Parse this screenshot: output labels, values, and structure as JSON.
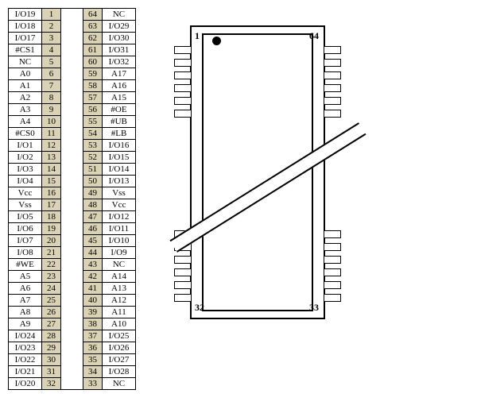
{
  "colors": {
    "shaded_cell_bg": "#dad2b4",
    "border": "#000000",
    "background": "#ffffff",
    "text": "#000000"
  },
  "typography": {
    "font_family": "Times New Roman, serif",
    "font_size_pt": 10,
    "label_weight": "bold"
  },
  "pin_table": {
    "type": "table",
    "columns": [
      "signal_left",
      "pin_left",
      "pin_right",
      "signal_right"
    ],
    "rows": [
      {
        "sl": "I/O19",
        "pl": "1",
        "pr": "64",
        "sr": "NC"
      },
      {
        "sl": "I/O18",
        "pl": "2",
        "pr": "63",
        "sr": "I/O29"
      },
      {
        "sl": "I/O17",
        "pl": "3",
        "pr": "62",
        "sr": "I/O30"
      },
      {
        "sl": "#CS1",
        "pl": "4",
        "pr": "61",
        "sr": "I/O31"
      },
      {
        "sl": "NC",
        "pl": "5",
        "pr": "60",
        "sr": "I/O32"
      },
      {
        "sl": "A0",
        "pl": "6",
        "pr": "59",
        "sr": "A17"
      },
      {
        "sl": "A1",
        "pl": "7",
        "pr": "58",
        "sr": "A16"
      },
      {
        "sl": "A2",
        "pl": "8",
        "pr": "57",
        "sr": "A15"
      },
      {
        "sl": "A3",
        "pl": "9",
        "pr": "56",
        "sr": "#OE"
      },
      {
        "sl": "A4",
        "pl": "10",
        "pr": "55",
        "sr": "#UB"
      },
      {
        "sl": "#CS0",
        "pl": "11",
        "pr": "54",
        "sr": "#LB"
      },
      {
        "sl": "I/O1",
        "pl": "12",
        "pr": "53",
        "sr": "I/O16"
      },
      {
        "sl": "I/O2",
        "pl": "13",
        "pr": "52",
        "sr": "I/O15"
      },
      {
        "sl": "I/O3",
        "pl": "14",
        "pr": "51",
        "sr": "I/O14"
      },
      {
        "sl": "I/O4",
        "pl": "15",
        "pr": "50",
        "sr": "I/O13"
      },
      {
        "sl": "Vcc",
        "pl": "16",
        "pr": "49",
        "sr": "Vss"
      },
      {
        "sl": "Vss",
        "pl": "17",
        "pr": "48",
        "sr": "Vcc"
      },
      {
        "sl": "I/O5",
        "pl": "18",
        "pr": "47",
        "sr": "I/O12"
      },
      {
        "sl": "I/O6",
        "pl": "19",
        "pr": "46",
        "sr": "I/O11"
      },
      {
        "sl": "I/O7",
        "pl": "20",
        "pr": "45",
        "sr": "I/O10"
      },
      {
        "sl": "I/O8",
        "pl": "21",
        "pr": "44",
        "sr": "I/O9"
      },
      {
        "sl": "#WE",
        "pl": "22",
        "pr": "43",
        "sr": "NC"
      },
      {
        "sl": "A5",
        "pl": "23",
        "pr": "42",
        "sr": "A14"
      },
      {
        "sl": "A6",
        "pl": "24",
        "pr": "41",
        "sr": "A13"
      },
      {
        "sl": "A7",
        "pl": "25",
        "pr": "40",
        "sr": "A12"
      },
      {
        "sl": "A8",
        "pl": "26",
        "pr": "39",
        "sr": "A11"
      },
      {
        "sl": "A9",
        "pl": "27",
        "pr": "38",
        "sr": "A10"
      },
      {
        "sl": "I/O24",
        "pl": "28",
        "pr": "37",
        "sr": "I/O25"
      },
      {
        "sl": "I/O23",
        "pl": "29",
        "pr": "36",
        "sr": "I/O26"
      },
      {
        "sl": "I/O22",
        "pl": "30",
        "pr": "35",
        "sr": "I/O27"
      },
      {
        "sl": "I/O21",
        "pl": "31",
        "pr": "34",
        "sr": "I/O28"
      },
      {
        "sl": "I/O20",
        "pl": "32",
        "pr": "33",
        "sr": "NC"
      }
    ]
  },
  "package_diagram": {
    "type": "ic-package-outline",
    "corner_labels": {
      "top_left": "1",
      "top_right": "64",
      "bottom_left": "32",
      "bottom_right": "33"
    },
    "pin1_dot_color": "#000000",
    "body_border_width": 2,
    "pins_per_side_shown": 12,
    "pin_rect": {
      "width": 22,
      "height": 10,
      "border_width": 1.5
    },
    "break_line": {
      "rotation_deg": -32,
      "gap_height": 18
    }
  }
}
